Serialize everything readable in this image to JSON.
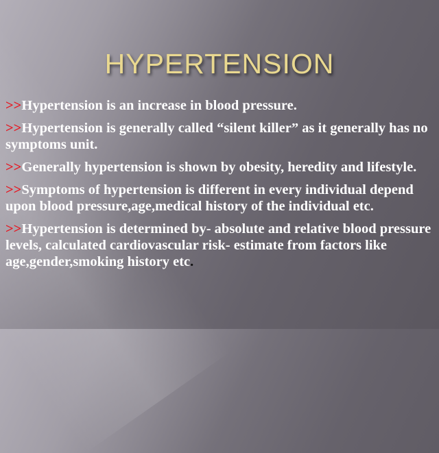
{
  "slide": {
    "title": "HYPERTENSION",
    "bullet_marker": ">>",
    "accent_color": "#e8141e",
    "title_color": "#e9d890",
    "paragraphs": [
      "Hypertension is an increase in blood pressure.",
      "Hypertension is generally called “silent killer” as it generally has no symptoms unit.",
      "Generally hypertension is shown by obesity, heredity and lifestyle.",
      "Symptoms of hypertension is different in every individual depend upon blood pressure,age,medical history of the individual etc.",
      "Hypertension is determined by- absolute and relative blood pressure levels, calculated cardiovascular risk- estimate from factors like age,gender,smoking history etc"
    ],
    "final_period": "."
  }
}
